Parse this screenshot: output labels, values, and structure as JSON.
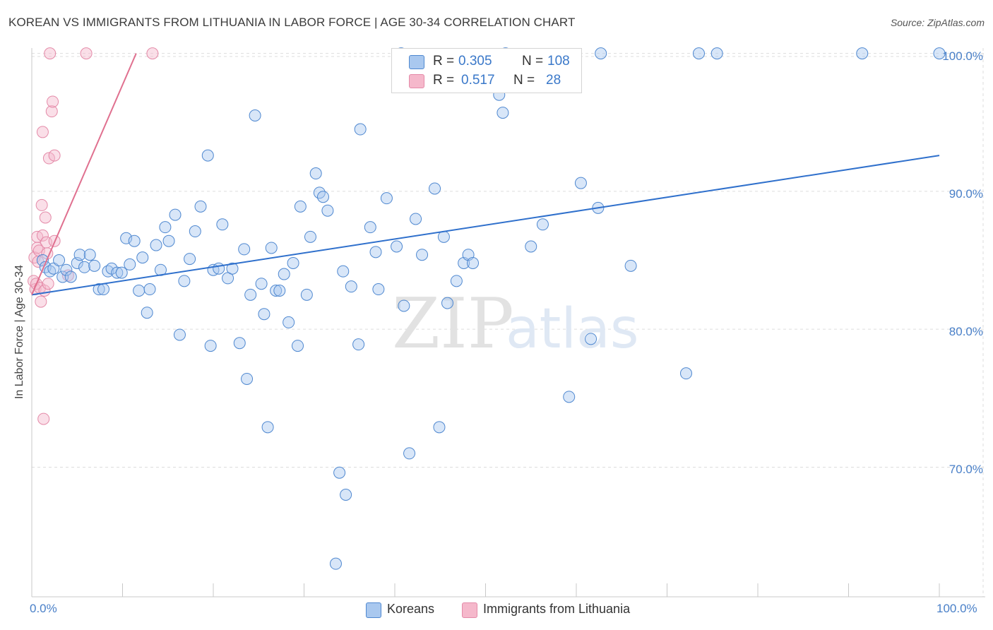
{
  "title": "KOREAN VS IMMIGRANTS FROM LITHUANIA IN LABOR FORCE | AGE 30-34 CORRELATION CHART",
  "source": "Source: ZipAtlas.com",
  "watermark": {
    "zip": "ZIP",
    "atlas": "atlas"
  },
  "legend_top": {
    "row1": {
      "r_label": "R = ",
      "r_value": "0.305",
      "n_label": "N = ",
      "n_value": "108",
      "color": "#a9c8ef"
    },
    "row2": {
      "r_label": "R = ",
      "r_value": "0.517",
      "n_label": "N = ",
      "n_value": "28",
      "color": "#f5b8cb"
    }
  },
  "legend_bottom": {
    "series1": "Koreans",
    "series2": "Immigrants from Lithuania"
  },
  "colors": {
    "blue_fill": "#a9c8ef",
    "blue_stroke": "#4f88d0",
    "blue_line": "#2f70cc",
    "pink_fill": "#f5b8cb",
    "pink_stroke": "#e48aa8",
    "pink_line": "#e0708f",
    "grid": "#dddddd",
    "tick_text": "#4a80c8"
  },
  "chart_data": {
    "type": "scatter",
    "title": "KOREAN VS IMMIGRANTS FROM LITHUANIA IN LABOR FORCE | AGE 30-34 CORRELATION CHART",
    "xlabel": "",
    "ylabel": "In Labor Force | Age 30-34",
    "xlim": [
      0,
      100
    ],
    "ylim": [
      60.6,
      100.8
    ],
    "x_tick_labels": [
      "0.0%",
      "100.0%"
    ],
    "y_ticks": [
      70,
      80,
      90,
      100
    ],
    "y_tick_labels": [
      "70.0%",
      "80.0%",
      "90.0%",
      "100.0%"
    ],
    "grid": true,
    "series": [
      {
        "name": "Koreans",
        "R": 0.305,
        "N": 108,
        "trendline": {
          "x": [
            0,
            100
          ],
          "y": [
            82.5,
            92.6
          ]
        },
        "points": [
          [
            1.2,
            85.0
          ],
          [
            1.5,
            84.5
          ],
          [
            2.0,
            84.2
          ],
          [
            2.4,
            84.4
          ],
          [
            3.0,
            85.0
          ],
          [
            3.4,
            83.8
          ],
          [
            3.8,
            84.3
          ],
          [
            4.3,
            83.8
          ],
          [
            5.0,
            84.8
          ],
          [
            5.3,
            85.4
          ],
          [
            5.8,
            84.5
          ],
          [
            6.4,
            85.4
          ],
          [
            6.9,
            84.6
          ],
          [
            7.4,
            82.9
          ],
          [
            7.9,
            82.9
          ],
          [
            8.4,
            84.2
          ],
          [
            8.8,
            84.4
          ],
          [
            9.4,
            84.1
          ],
          [
            9.9,
            84.1
          ],
          [
            10.4,
            86.6
          ],
          [
            10.8,
            84.7
          ],
          [
            11.3,
            86.4
          ],
          [
            11.8,
            82.8
          ],
          [
            12.2,
            85.2
          ],
          [
            12.7,
            81.2
          ],
          [
            13.0,
            82.9
          ],
          [
            13.7,
            86.1
          ],
          [
            14.2,
            84.3
          ],
          [
            14.7,
            87.4
          ],
          [
            15.1,
            86.4
          ],
          [
            15.8,
            88.3
          ],
          [
            16.3,
            79.6
          ],
          [
            16.8,
            83.5
          ],
          [
            17.4,
            85.1
          ],
          [
            18.0,
            87.1
          ],
          [
            18.6,
            88.9
          ],
          [
            19.4,
            92.6
          ],
          [
            19.7,
            78.8
          ],
          [
            20.0,
            84.3
          ],
          [
            20.6,
            84.4
          ],
          [
            21.0,
            87.6
          ],
          [
            21.6,
            83.7
          ],
          [
            22.1,
            84.4
          ],
          [
            22.9,
            79.0
          ],
          [
            23.4,
            85.8
          ],
          [
            23.7,
            76.4
          ],
          [
            24.1,
            82.5
          ],
          [
            24.6,
            95.5
          ],
          [
            25.3,
            83.3
          ],
          [
            25.6,
            81.1
          ],
          [
            26.0,
            72.9
          ],
          [
            26.4,
            85.9
          ],
          [
            26.9,
            82.8
          ],
          [
            27.3,
            82.8
          ],
          [
            27.8,
            84.0
          ],
          [
            28.3,
            80.5
          ],
          [
            28.8,
            84.8
          ],
          [
            29.3,
            78.8
          ],
          [
            29.6,
            88.9
          ],
          [
            30.3,
            82.5
          ],
          [
            30.7,
            86.7
          ],
          [
            31.3,
            91.3
          ],
          [
            31.7,
            89.9
          ],
          [
            32.1,
            89.6
          ],
          [
            32.6,
            88.6
          ],
          [
            33.5,
            63.0
          ],
          [
            33.9,
            69.6
          ],
          [
            34.3,
            84.2
          ],
          [
            34.6,
            68.0
          ],
          [
            35.2,
            83.1
          ],
          [
            36.0,
            78.9
          ],
          [
            36.2,
            94.5
          ],
          [
            37.3,
            87.4
          ],
          [
            37.9,
            85.6
          ],
          [
            38.2,
            82.9
          ],
          [
            39.1,
            89.5
          ],
          [
            40.2,
            86.0
          ],
          [
            40.7,
            100.0
          ],
          [
            41.0,
            81.7
          ],
          [
            41.6,
            71.0
          ],
          [
            42.3,
            88.0
          ],
          [
            43.0,
            85.4
          ],
          [
            44.4,
            90.2
          ],
          [
            44.9,
            72.9
          ],
          [
            45.4,
            86.7
          ],
          [
            45.8,
            81.9
          ],
          [
            46.8,
            83.5
          ],
          [
            47.6,
            84.8
          ],
          [
            48.1,
            85.4
          ],
          [
            48.6,
            84.8
          ],
          [
            49.6,
            98.0
          ],
          [
            50.0,
            98.0
          ],
          [
            51.5,
            97.0
          ],
          [
            51.9,
            95.7
          ],
          [
            52.2,
            100.0
          ],
          [
            55.0,
            86.0
          ],
          [
            56.3,
            87.6
          ],
          [
            59.2,
            75.1
          ],
          [
            60.5,
            90.6
          ],
          [
            61.6,
            79.3
          ],
          [
            62.4,
            88.8
          ],
          [
            62.7,
            100.0
          ],
          [
            66.0,
            84.6
          ],
          [
            72.1,
            76.8
          ],
          [
            73.5,
            100.0
          ],
          [
            75.5,
            100.0
          ],
          [
            91.5,
            100.0
          ],
          [
            100.0,
            100.0
          ]
        ]
      },
      {
        "name": "Immigrants from Lithuania",
        "R": 0.517,
        "N": 28,
        "trendline": {
          "x": [
            0,
            11.5
          ],
          "y": [
            82.5,
            100.0
          ]
        },
        "points": [
          [
            0.2,
            83.5
          ],
          [
            0.3,
            85.2
          ],
          [
            0.4,
            82.9
          ],
          [
            0.5,
            83.3
          ],
          [
            0.6,
            86.7
          ],
          [
            0.6,
            85.9
          ],
          [
            0.7,
            84.9
          ],
          [
            0.8,
            85.7
          ],
          [
            0.9,
            83.0
          ],
          [
            1.0,
            82.0
          ],
          [
            1.1,
            89.0
          ],
          [
            1.2,
            94.3
          ],
          [
            1.2,
            86.8
          ],
          [
            1.3,
            73.5
          ],
          [
            1.4,
            82.8
          ],
          [
            1.5,
            88.1
          ],
          [
            1.6,
            86.3
          ],
          [
            1.7,
            85.5
          ],
          [
            1.8,
            83.3
          ],
          [
            1.9,
            92.4
          ],
          [
            2.0,
            100.0
          ],
          [
            2.2,
            95.8
          ],
          [
            2.3,
            96.5
          ],
          [
            2.5,
            92.6
          ],
          [
            2.5,
            86.4
          ],
          [
            4.0,
            83.9
          ],
          [
            6.0,
            100.0
          ],
          [
            13.3,
            100.0
          ]
        ]
      }
    ]
  }
}
